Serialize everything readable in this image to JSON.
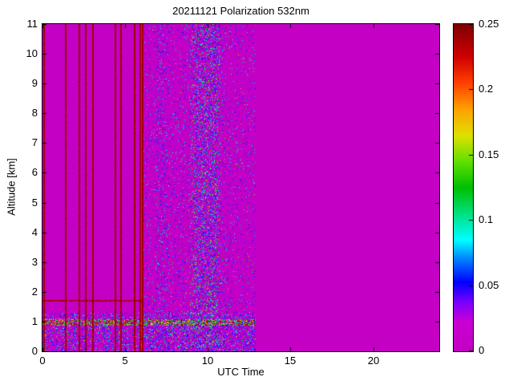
{
  "chart_data": {
    "type": "heatmap",
    "title": "20211121 Polarization 532nm",
    "xlabel": "UTC Time",
    "ylabel": "Altitude [km]",
    "x_range": [
      0,
      24
    ],
    "y_range": [
      0,
      11
    ],
    "x_ticks": [
      0,
      5,
      10,
      15,
      20
    ],
    "x_tick_labels": [
      "0",
      "5",
      "10",
      "15",
      "20"
    ],
    "y_ticks": [
      0,
      1,
      2,
      3,
      4,
      5,
      6,
      7,
      8,
      9,
      10,
      11
    ],
    "y_tick_labels": [
      "0",
      "1",
      "2",
      "3",
      "4",
      "5",
      "6",
      "7",
      "8",
      "9",
      "10",
      "11"
    ],
    "grid": false,
    "background_value": 0,
    "background_color": "#c400c4",
    "axis_color": "#000000",
    "figure_background": "#ffffff",
    "colorbar": {
      "position": "right",
      "min": 0,
      "max": 0.25,
      "ticks": [
        0,
        0.05,
        0.1,
        0.15,
        0.2,
        0.25
      ],
      "tick_labels": [
        "0",
        "0.05",
        "0.1",
        "0.15",
        "0.2",
        "0.25"
      ]
    },
    "colormap_stops": [
      {
        "u": 0.0,
        "c": [
          196,
          0,
          196
        ]
      },
      {
        "u": 0.09,
        "c": [
          200,
          0,
          212
        ]
      },
      {
        "u": 0.15,
        "c": [
          120,
          0,
          255
        ]
      },
      {
        "u": 0.21,
        "c": [
          0,
          0,
          255
        ]
      },
      {
        "u": 0.28,
        "c": [
          0,
          128,
          255
        ]
      },
      {
        "u": 0.34,
        "c": [
          0,
          255,
          255
        ]
      },
      {
        "u": 0.42,
        "c": [
          0,
          224,
          128
        ]
      },
      {
        "u": 0.5,
        "c": [
          0,
          192,
          0
        ]
      },
      {
        "u": 0.58,
        "c": [
          96,
          224,
          0
        ]
      },
      {
        "u": 0.66,
        "c": [
          224,
          224,
          0
        ]
      },
      {
        "u": 0.74,
        "c": [
          255,
          160,
          0
        ]
      },
      {
        "u": 0.82,
        "c": [
          255,
          64,
          0
        ]
      },
      {
        "u": 0.9,
        "c": [
          208,
          0,
          0
        ]
      },
      {
        "u": 1.0,
        "c": [
          128,
          0,
          0
        ]
      }
    ],
    "features": {
      "calibration_stripes": {
        "value": 0.25,
        "width_hours": 0.09,
        "x_positions": [
          0.07,
          1.38,
          2.18,
          2.55,
          3.02,
          4.35,
          4.72,
          5.55,
          5.85,
          6.02
        ]
      },
      "noise_region": {
        "x0": 6.1,
        "x1": 12.9,
        "base_density": 0.11,
        "value_offset": 0.018,
        "value_scale": 0.03,
        "outlier_prob": 0.012,
        "dense_columns": [
          {
            "x": 9.55,
            "width": 0.5,
            "density": 0.22,
            "value_offset": 0.03,
            "value_scale": 0.05
          },
          {
            "x": 10.35,
            "width": 0.3,
            "density": 0.18,
            "value_offset": 0.03,
            "value_scale": 0.05
          },
          {
            "x": 7.25,
            "width": 0.3,
            "density": 0.12,
            "value_offset": 0.02,
            "value_scale": 0.03
          }
        ]
      },
      "surface_band": {
        "x0": 0,
        "x1": 12.9,
        "y0": 0,
        "y1": 1.3,
        "density": 0.38,
        "value_offset": 0.012,
        "value_scale": 0.04
      },
      "ground_layer": {
        "x0": 0,
        "x1": 12.9,
        "y0": 0.85,
        "y1": 1.08,
        "density": 0.55,
        "value_offset": 0.09,
        "value_scale": 0.11
      },
      "boundary_line": {
        "x0": 0,
        "x1": 6.05,
        "y": 1.7,
        "thickness": 0.07,
        "value": 0.24,
        "coverage": 0.85
      }
    }
  }
}
